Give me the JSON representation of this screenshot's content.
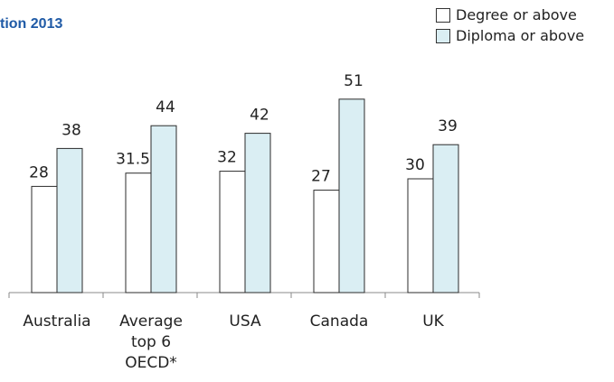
{
  "title": {
    "line1": "",
    "line2": "tion 2013"
  },
  "legend": [
    {
      "label": "Degree or above",
      "color": "#ffffff"
    },
    {
      "label": "Diploma or above",
      "color": "#daeef3"
    }
  ],
  "chart_data": {
    "type": "bar",
    "categories": [
      [
        "Australia"
      ],
      [
        "Average",
        "top 6",
        "OECD*"
      ],
      [
        "USA"
      ],
      [
        "Canada"
      ],
      [
        "UK"
      ]
    ],
    "series": [
      {
        "name": "Degree or above",
        "values": [
          28,
          31.5,
          32,
          27,
          30
        ],
        "labels": [
          "28",
          "31.5",
          "32",
          "27",
          "30"
        ],
        "color": "#ffffff"
      },
      {
        "name": "Diploma or above",
        "values": [
          38,
          44,
          42,
          51,
          39
        ],
        "labels": [
          "38",
          "44",
          "42",
          "51",
          "39"
        ],
        "color": "#daeef3"
      }
    ],
    "ylim": [
      0,
      55
    ],
    "grid": false,
    "legend_position": "top-right"
  }
}
